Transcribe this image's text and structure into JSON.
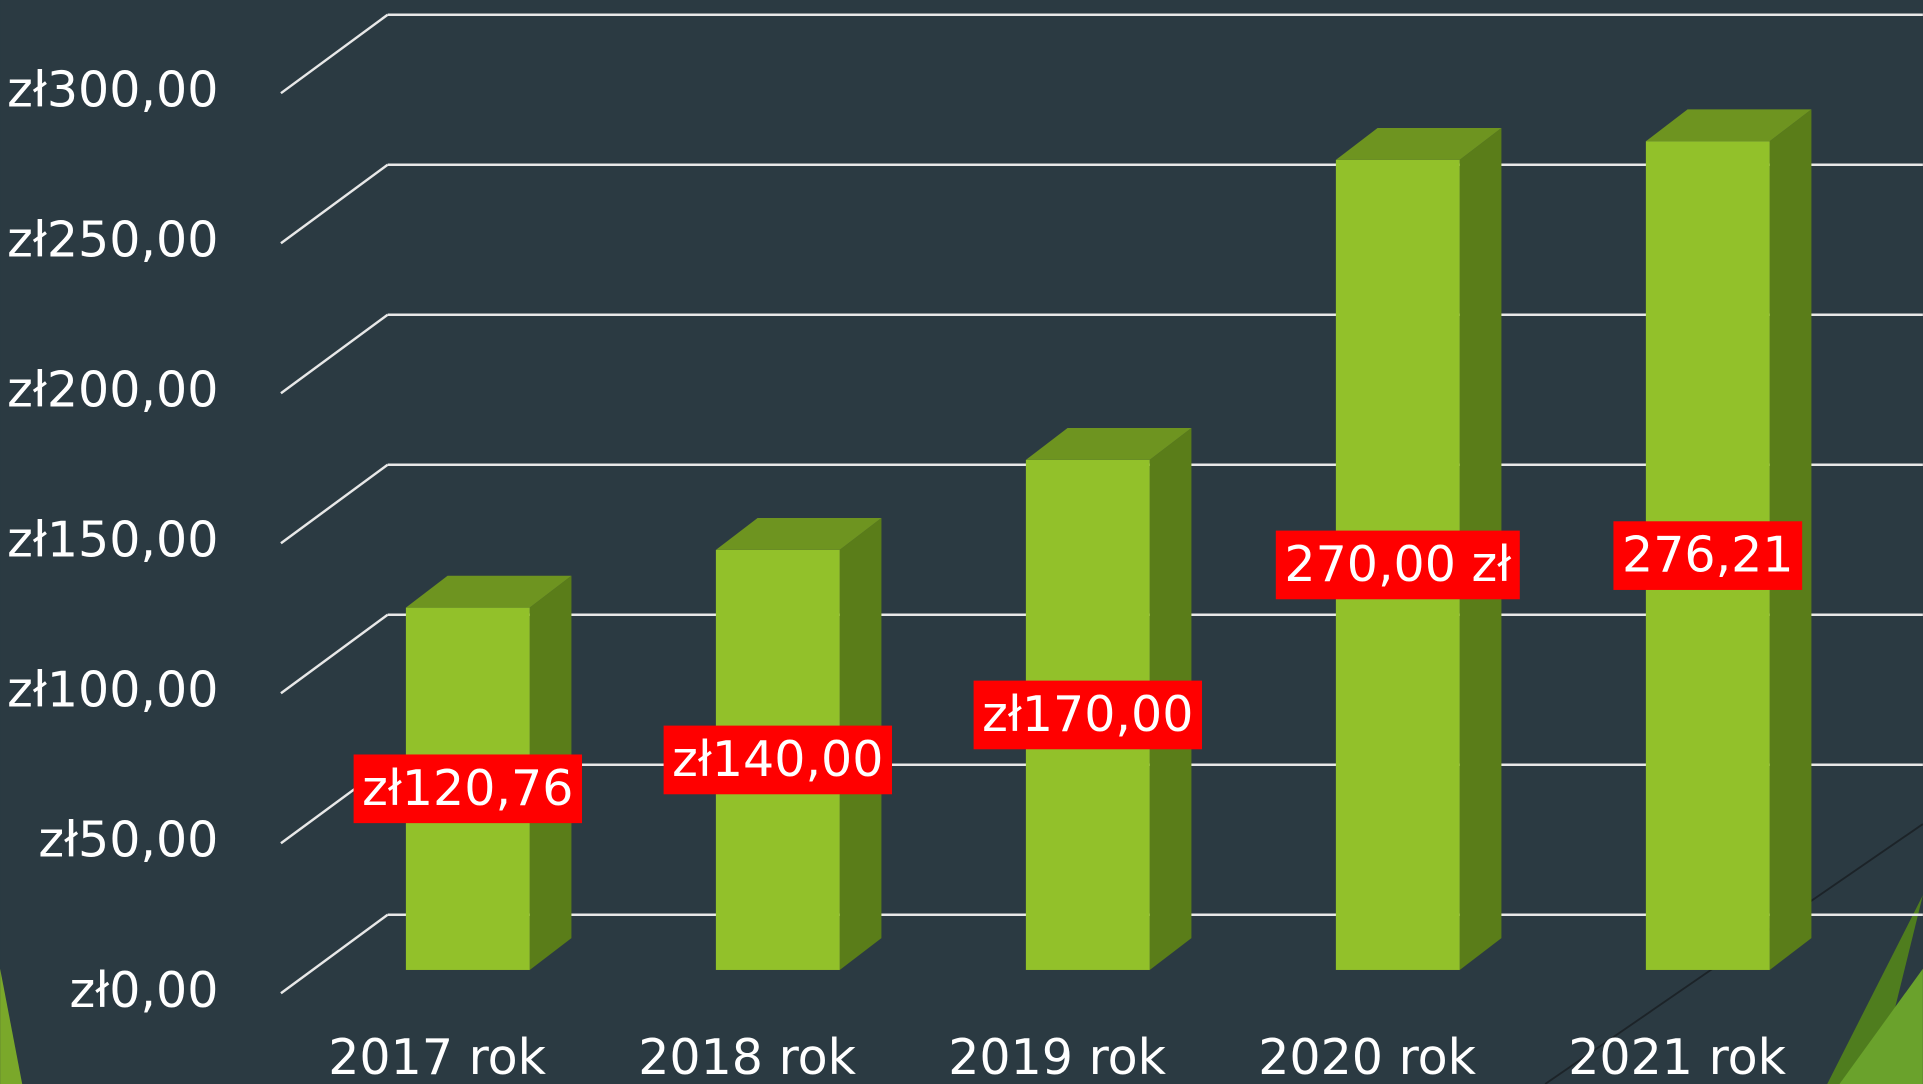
{
  "chart_data": {
    "type": "bar3d",
    "categories": [
      "2017 rok",
      "2018 rok",
      "2019 rok",
      "2020 rok",
      "2021 rok"
    ],
    "values": [
      120.76,
      140,
      170,
      270,
      276.21
    ],
    "value_labels": [
      "zł120,76",
      "zł140,00",
      "zł170,00",
      "270,00 zł",
      "276,21"
    ],
    "color": "#92c12a",
    "ylim": [
      0,
      300
    ],
    "yticks": [
      {
        "value": 0,
        "label": "zł0,00"
      },
      {
        "value": 50,
        "label": "zł50,00"
      },
      {
        "value": 100,
        "label": "zł100,00"
      },
      {
        "value": 150,
        "label": "zł150,00"
      },
      {
        "value": 200,
        "label": "zł200,00"
      },
      {
        "value": 250,
        "label": "zł250,00"
      },
      {
        "value": 300,
        "label": "zł300,00"
      }
    ],
    "grid": true
  }
}
